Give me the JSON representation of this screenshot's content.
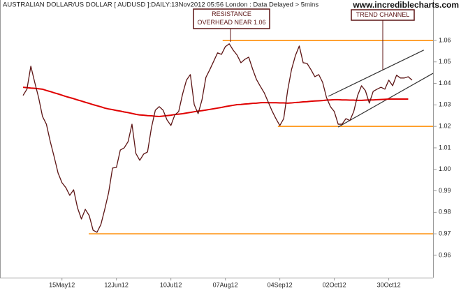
{
  "chart_data": {
    "type": "line",
    "title": "AUSTRALIAN DOLLAR/US DOLLAR [ AUDUSD ]:DAILY:13Nov2012 05:56 London : Data Delayed > 5mins",
    "watermark": "www.incrediblecharts.com",
    "categories": [
      null,
      null,
      null,
      null,
      null,
      null,
      null,
      null,
      null,
      null,
      "15May12",
      null,
      null,
      null,
      null,
      null,
      null,
      null,
      null,
      null,
      null,
      null,
      null,
      null,
      "12Jun12",
      null,
      null,
      null,
      null,
      null,
      null,
      null,
      null,
      null,
      null,
      null,
      null,
      null,
      "10Jul12",
      null,
      null,
      null,
      null,
      null,
      null,
      null,
      null,
      null,
      null,
      null,
      null,
      null,
      "07Aug12",
      null,
      null,
      null,
      null,
      null,
      null,
      null,
      null,
      null,
      null,
      null,
      null,
      null,
      "04Sep12",
      null,
      null,
      null,
      null,
      null,
      null,
      null,
      null,
      null,
      null,
      null,
      null,
      null,
      "02Oct12",
      null,
      null,
      null,
      null,
      null,
      null,
      null,
      null,
      null,
      null,
      null,
      null,
      null,
      "30Oct12",
      null,
      null,
      null,
      null,
      null,
      null
    ],
    "series": [
      {
        "color": "#5c1414",
        "width": 1.3,
        "values": [
          1.0344,
          1.0373,
          1.048,
          1.0405,
          1.0334,
          1.0246,
          1.021,
          1.0129,
          1.0058,
          0.9983,
          0.9938,
          0.9915,
          0.9879,
          0.9905,
          0.9821,
          0.9769,
          0.9814,
          0.9785,
          0.9717,
          0.9707,
          0.9743,
          0.9814,
          0.9892,
          1.0006,
          1.0009,
          1.009,
          1.01,
          1.0129,
          1.021,
          1.0074,
          1.0042,
          1.0071,
          1.0081,
          1.0194,
          1.0275,
          1.0292,
          1.0275,
          1.023,
          1.0204,
          1.0253,
          1.0269,
          1.035,
          1.0415,
          1.0441,
          1.0301,
          1.0259,
          1.0324,
          1.0428,
          1.0464,
          1.0503,
          1.0542,
          1.0535,
          1.0571,
          1.0584,
          1.0555,
          1.0532,
          1.0496,
          1.0512,
          1.0522,
          1.0467,
          1.0418,
          1.0386,
          1.0356,
          1.0314,
          1.0272,
          1.0236,
          1.0204,
          1.0236,
          1.0366,
          1.0464,
          1.0529,
          1.0574,
          1.0496,
          1.0493,
          1.0464,
          1.0431,
          1.0441,
          1.0405,
          1.0334,
          1.0292,
          1.0269,
          1.021,
          1.021,
          1.0236,
          1.0227,
          1.0269,
          1.0344,
          1.0389,
          1.0366,
          1.0308,
          1.0363,
          1.0373,
          1.0382,
          1.0373,
          1.0415,
          1.0389,
          1.0438,
          1.0425,
          1.0425,
          1.0431,
          1.0415
        ]
      },
      {
        "color": "#e00000",
        "width": 2,
        "values": [
          1.0382,
          1.038,
          1.0378,
          1.0377,
          1.0375,
          1.0373,
          1.0367,
          1.0362,
          1.0356,
          1.0351,
          1.0345,
          1.0339,
          1.0334,
          1.0329,
          1.0323,
          1.0318,
          1.0312,
          1.0307,
          1.0301,
          1.0296,
          1.0291,
          1.0285,
          1.0281,
          1.0278,
          1.0274,
          1.0271,
          1.0267,
          1.0264,
          1.026,
          1.0256,
          1.0253,
          1.0252,
          1.025,
          1.0249,
          1.0247,
          1.0246,
          1.0248,
          1.025,
          1.0252,
          1.0255,
          1.0257,
          1.0259,
          1.0262,
          1.0265,
          1.0268,
          1.0271,
          1.0273,
          1.0276,
          1.0279,
          1.0282,
          1.0285,
          1.0288,
          1.0292,
          1.0295,
          1.0298,
          1.0301,
          1.0302,
          1.0304,
          1.0305,
          1.0307,
          1.0308,
          1.031,
          1.0311,
          1.031,
          1.031,
          1.031,
          1.0309,
          1.0309,
          1.0308,
          1.0309,
          1.0311,
          1.0312,
          1.0314,
          1.0315,
          1.0317,
          1.0318,
          1.0319,
          1.032,
          1.0322,
          1.0323,
          1.0324,
          1.0324,
          1.0323,
          1.0323,
          1.0322,
          1.0322,
          1.0321,
          1.0321,
          1.0322,
          1.0323,
          1.0323,
          1.0324,
          1.0325,
          1.0326,
          1.0327,
          1.0327,
          1.0327,
          1.0327,
          1.0327,
          1.0327,
          null
        ]
      }
    ],
    "levels": [
      {
        "value": 1.06,
        "start": 51.3,
        "color": "#ff8c00"
      },
      {
        "value": 1.02,
        "start": 65.5,
        "color": "#ff8c00"
      },
      {
        "value": 0.97,
        "start": 16.9,
        "color": "#ff8c00"
      }
    ],
    "channel": [
      {
        "x": [
          78.5,
          103
        ],
        "y": [
          1.034,
          1.0555
        ],
        "color": "#333333"
      },
      {
        "x": [
          81,
          105.4
        ],
        "y": [
          1.0197,
          1.0447
        ],
        "color": "#333333"
      }
    ],
    "annotations": [
      {
        "text": [
          "RESISTANCE",
          "OVERHEAD NEAR 1.06"
        ]
      },
      {
        "text": [
          "TREND CHANNEL"
        ]
      }
    ],
    "ylim": [
      0.9496,
      1.0788
    ],
    "yticks": [
      0.96,
      0.97,
      0.98,
      0.99,
      {
        "value": 1,
        "label": "1.00"
      },
      1.01,
      1.02,
      1.03,
      1.04,
      1.05,
      1.06
    ]
  }
}
